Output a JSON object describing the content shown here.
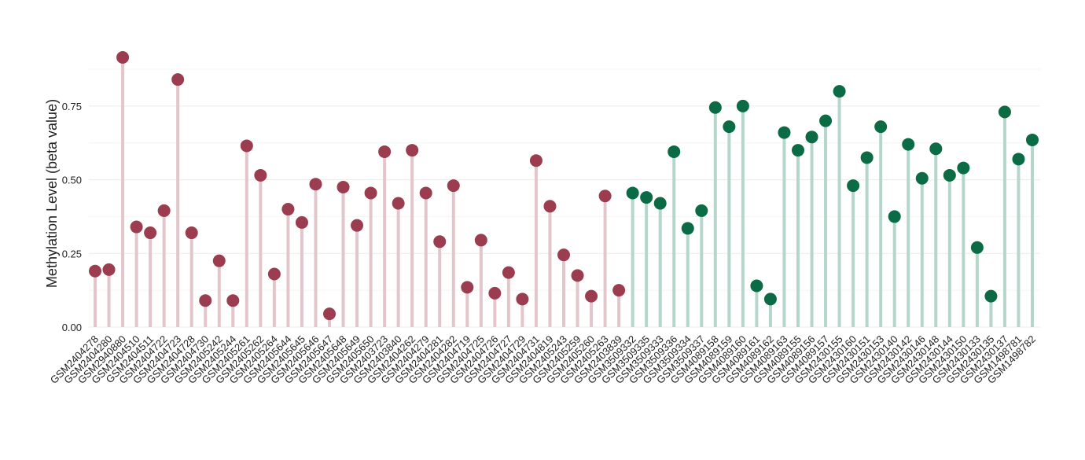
{
  "chart_data": {
    "type": "lollipop",
    "y_label": "Methylation Level (beta value)",
    "ylim": [
      0,
      0.875
    ],
    "yticks": [
      {
        "value": 0,
        "label": "0.00"
      },
      {
        "value": 0.25,
        "label": "0.25"
      },
      {
        "value": 0.5,
        "label": "0.50"
      },
      {
        "value": 0.75,
        "label": "0.75"
      }
    ],
    "minor_yticks": [
      0.125,
      0.375,
      0.625,
      0.875
    ],
    "grid": true,
    "series": [
      {
        "color": "#9b3d4e",
        "stem_color": "#e2c6cb",
        "categories": [
          "GSM2404278",
          "GSM2404280",
          "GSM2940880",
          "GSM2404510",
          "GSM2404511",
          "GSM2404722",
          "GSM2404723",
          "GSM2404728",
          "GSM2404730",
          "GSM2405242",
          "GSM2405244",
          "GSM2405261",
          "GSM2405262",
          "GSM2405264",
          "GSM2405644",
          "GSM2405645",
          "GSM2405646",
          "GSM2405647",
          "GSM2405648",
          "GSM2405649",
          "GSM2405650",
          "GSM2403723",
          "GSM2403840",
          "GSM2404262",
          "GSM2404279",
          "GSM2404281",
          "GSM2404282",
          "GSM2404719",
          "GSM2404725",
          "GSM2404726",
          "GSM2404727",
          "GSM2404729",
          "GSM2404731",
          "GSM2404819",
          "GSM2405243",
          "GSM2405259",
          "GSM2405260",
          "GSM2405263",
          "GSM2403839"
        ],
        "values": [
          0.19,
          0.195,
          0.915,
          0.34,
          0.32,
          0.395,
          0.84,
          0.32,
          0.09,
          0.225,
          0.09,
          0.615,
          0.515,
          0.18,
          0.4,
          0.355,
          0.485,
          0.045,
          0.475,
          0.345,
          0.455,
          0.595,
          0.42,
          0.6,
          0.455,
          0.29,
          0.48,
          0.135,
          0.295,
          0.115,
          0.185,
          0.095,
          0.565,
          0.41,
          0.245,
          0.175,
          0.105,
          0.445,
          0.125
        ]
      },
      {
        "color": "#0a6b44",
        "stem_color": "#b5d6ca",
        "categories": [
          "GSM3509332",
          "GSM3509335",
          "GSM3509333",
          "GSM3509336",
          "GSM3509334",
          "GSM3509337",
          "GSM4089158",
          "GSM4089159",
          "GSM4089160",
          "GSM4089161",
          "GSM4089162",
          "GSM4089163",
          "GSM4089155",
          "GSM4089156",
          "GSM4089157",
          "GSM2430155",
          "GSM2430160",
          "GSM2430151",
          "GSM2430153",
          "GSM2430140",
          "GSM2430142",
          "GSM2430146",
          "GSM2430148",
          "GSM2430144",
          "GSM2430150",
          "GSM2430133",
          "GSM2430135",
          "GSM2430137",
          "GSM1498781",
          "GSM1498782"
        ],
        "values": [
          0.455,
          0.44,
          0.42,
          0.595,
          0.335,
          0.395,
          0.745,
          0.68,
          0.75,
          0.14,
          0.095,
          0.66,
          0.6,
          0.645,
          0.7,
          0.8,
          0.48,
          0.575,
          0.68,
          0.375,
          0.62,
          0.505,
          0.605,
          0.515,
          0.54,
          0.27,
          0.105,
          0.73,
          0.57,
          0.635
        ]
      }
    ]
  }
}
